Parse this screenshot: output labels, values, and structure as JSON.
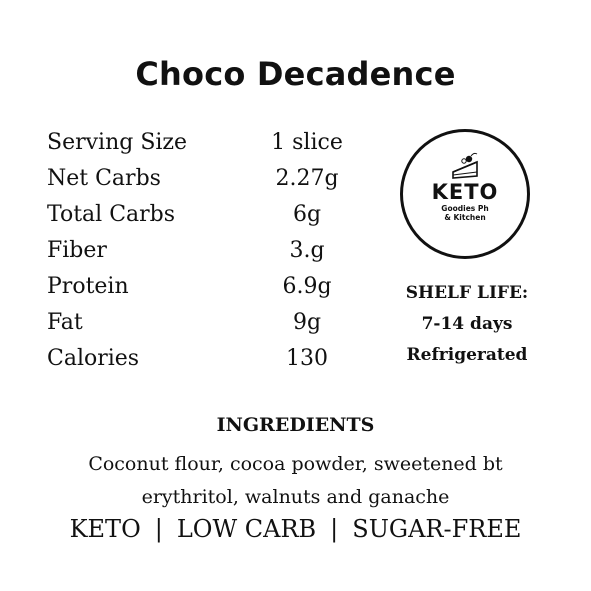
{
  "title": "Choco Decadence",
  "nutrition": [
    {
      "label": "Serving Size",
      "value": "1 slice"
    },
    {
      "label": "Net Carbs",
      "value": "2.27g"
    },
    {
      "label": "Total Carbs",
      "value": "6g"
    },
    {
      "label": "Fiber",
      "value": "3.g"
    },
    {
      "label": "Protein",
      "value": "6.9g"
    },
    {
      "label": "Fat",
      "value": "9g"
    },
    {
      "label": "Calories",
      "value": "130"
    }
  ],
  "logo": {
    "brand": "KETO",
    "line1": "Goodies Ph",
    "line2": "& Kitchen",
    "icon": "cake-slice-icon"
  },
  "shelf_life": {
    "heading": "SHELF LIFE:",
    "duration": "7-14 days",
    "storage": "Refrigerated"
  },
  "ingredients": {
    "heading": "INGREDIENTS",
    "line1": "Coconut flour, cocoa powder, sweetened bt",
    "line2": "erythritol, walnuts and ganache"
  },
  "tags": {
    "items": [
      "KETO",
      "LOW CARB",
      "SUGAR-FREE"
    ],
    "separator": "|"
  }
}
